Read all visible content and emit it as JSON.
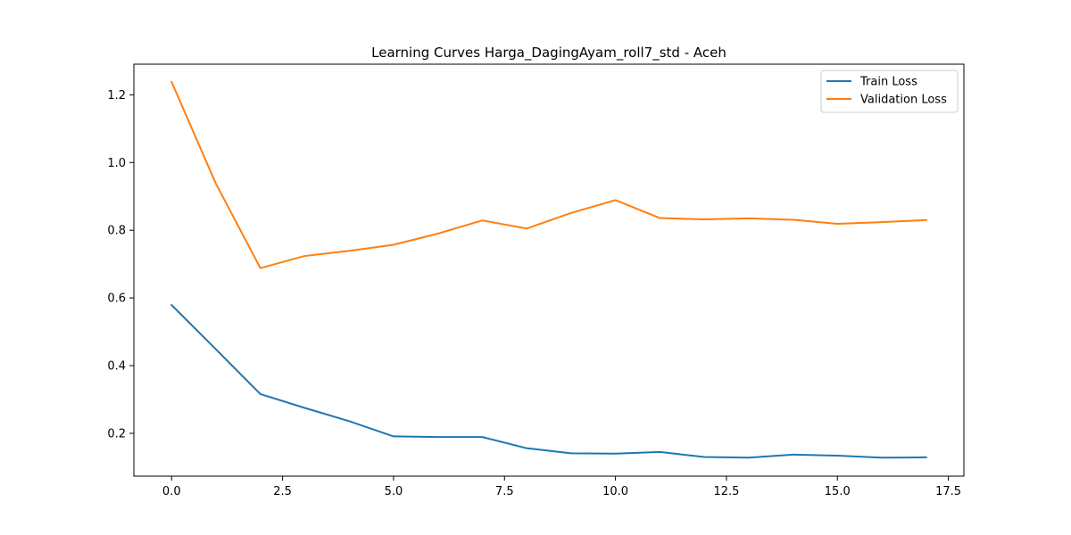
{
  "chart_data": {
    "type": "line",
    "title": "Learning Curves Harga_DagingAyam_roll7_std - Aceh",
    "xlabel": "",
    "ylabel": "",
    "xlim": [
      -0.85,
      17.85
    ],
    "ylim": [
      0.0735,
      1.2905
    ],
    "x_ticks": [
      0,
      2.5,
      5,
      7.5,
      10,
      12.5,
      15,
      17.5
    ],
    "x_tick_labels": [
      "0.0",
      "2.5",
      "5.0",
      "7.5",
      "10.0",
      "12.5",
      "15.0",
      "17.5"
    ],
    "y_ticks": [
      0.2,
      0.4,
      0.6,
      0.8,
      1.0,
      1.2
    ],
    "y_tick_labels": [
      "0.2",
      "0.4",
      "0.6",
      "0.8",
      "1.0",
      "1.2"
    ],
    "grid": false,
    "legend_position": "top-right",
    "x": [
      0,
      1,
      2,
      3,
      4,
      5,
      6,
      7,
      8,
      9,
      10,
      11,
      12,
      13,
      14,
      15,
      16,
      17
    ],
    "series": [
      {
        "name": "Train Loss",
        "color": "#1f77b4",
        "values": [
          0.579,
          0.448,
          0.316,
          0.275,
          0.236,
          0.191,
          0.189,
          0.189,
          0.156,
          0.141,
          0.14,
          0.145,
          0.13,
          0.128,
          0.137,
          0.134,
          0.128,
          0.129
        ]
      },
      {
        "name": "Validation Loss",
        "color": "#ff7f0e",
        "values": [
          1.238,
          0.937,
          0.688,
          0.724,
          0.739,
          0.757,
          0.79,
          0.829,
          0.805,
          0.851,
          0.889,
          0.836,
          0.832,
          0.835,
          0.831,
          0.819,
          0.824,
          0.83
        ]
      }
    ]
  }
}
